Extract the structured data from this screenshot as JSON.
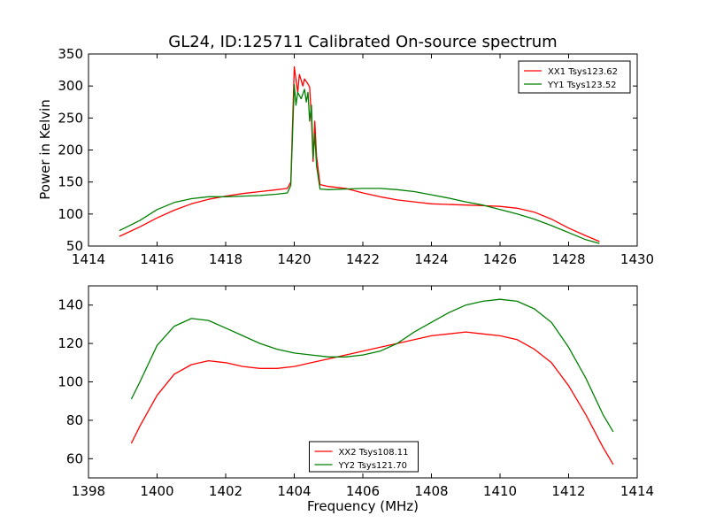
{
  "chart_data": {
    "title": "GL24, ID:125711 Calibrated On-source spectrum",
    "xlabel": "Frequency (MHz)",
    "charts": [
      {
        "type": "line",
        "ylabel": "Power in Kelvin",
        "xlim": [
          1414,
          1430
        ],
        "ylim": [
          50,
          350
        ],
        "xticks": [
          "1414",
          "1416",
          "1418",
          "1420",
          "1422",
          "1424",
          "1426",
          "1428",
          "1430"
        ],
        "yticks": [
          "50",
          "100",
          "150",
          "200",
          "250",
          "300",
          "350"
        ],
        "legend_position": "upper right",
        "series": [
          {
            "name": "XX1 Tsys123.62",
            "color": "#ff0000",
            "points": [
              [
                1414.9,
                65
              ],
              [
                1415.5,
                80
              ],
              [
                1416,
                94
              ],
              [
                1416.5,
                106
              ],
              [
                1417,
                116
              ],
              [
                1417.5,
                123
              ],
              [
                1418,
                128
              ],
              [
                1418.5,
                132
              ],
              [
                1419,
                135
              ],
              [
                1419.5,
                138
              ],
              [
                1419.8,
                140
              ],
              [
                1419.9,
                150
              ],
              [
                1420.0,
                330
              ],
              [
                1420.1,
                290
              ],
              [
                1420.15,
                318
              ],
              [
                1420.25,
                300
              ],
              [
                1420.3,
                311
              ],
              [
                1420.4,
                303
              ],
              [
                1420.45,
                298
              ],
              [
                1420.5,
                250
              ],
              [
                1420.55,
                182
              ],
              [
                1420.6,
                245
              ],
              [
                1420.65,
                190
              ],
              [
                1420.75,
                146
              ],
              [
                1421,
                143
              ],
              [
                1421.5,
                140
              ],
              [
                1422,
                133
              ],
              [
                1422.5,
                127
              ],
              [
                1423,
                122
              ],
              [
                1423.5,
                119
              ],
              [
                1424,
                116
              ],
              [
                1424.5,
                115
              ],
              [
                1425,
                114
              ],
              [
                1425.5,
                113
              ],
              [
                1426,
                112
              ],
              [
                1426.5,
                109
              ],
              [
                1427,
                103
              ],
              [
                1427.5,
                92
              ],
              [
                1428,
                78
              ],
              [
                1428.5,
                66
              ],
              [
                1428.9,
                57
              ]
            ]
          },
          {
            "name": "YY1 Tsys123.52",
            "color": "#008000",
            "points": [
              [
                1414.9,
                74
              ],
              [
                1415.5,
                90
              ],
              [
                1416,
                107
              ],
              [
                1416.5,
                118
              ],
              [
                1417,
                124
              ],
              [
                1417.5,
                127
              ],
              [
                1418,
                127
              ],
              [
                1418.5,
                128
              ],
              [
                1419,
                129
              ],
              [
                1419.5,
                131
              ],
              [
                1419.8,
                133
              ],
              [
                1419.9,
                145
              ],
              [
                1420.0,
                302
              ],
              [
                1420.05,
                270
              ],
              [
                1420.1,
                290
              ],
              [
                1420.2,
                280
              ],
              [
                1420.3,
                295
              ],
              [
                1420.35,
                275
              ],
              [
                1420.4,
                290
              ],
              [
                1420.45,
                245
              ],
              [
                1420.5,
                270
              ],
              [
                1420.55,
                188
              ],
              [
                1420.6,
                225
              ],
              [
                1420.65,
                175
              ],
              [
                1420.75,
                139
              ],
              [
                1421,
                138
              ],
              [
                1421.5,
                139
              ],
              [
                1422,
                140
              ],
              [
                1422.5,
                140
              ],
              [
                1423,
                138
              ],
              [
                1423.5,
                135
              ],
              [
                1424,
                130
              ],
              [
                1424.5,
                125
              ],
              [
                1425,
                119
              ],
              [
                1425.5,
                114
              ],
              [
                1426,
                107
              ],
              [
                1426.5,
                100
              ],
              [
                1427,
                92
              ],
              [
                1427.5,
                82
              ],
              [
                1428,
                71
              ],
              [
                1428.5,
                60
              ],
              [
                1428.9,
                54
              ]
            ]
          }
        ]
      },
      {
        "type": "line",
        "ylabel": "",
        "xlim": [
          1398,
          1414
        ],
        "ylim": [
          50,
          150
        ],
        "xticks": [
          "1398",
          "1400",
          "1402",
          "1404",
          "1406",
          "1408",
          "1410",
          "1412",
          "1414"
        ],
        "yticks": [
          "60",
          "80",
          "100",
          "120",
          "140"
        ],
        "legend_position": "lower center",
        "series": [
          {
            "name": "XX2 Tsys108.11",
            "color": "#ff0000",
            "points": [
              [
                1399.25,
                68
              ],
              [
                1399.5,
                77
              ],
              [
                1400,
                93
              ],
              [
                1400.5,
                104
              ],
              [
                1401,
                109
              ],
              [
                1401.5,
                111
              ],
              [
                1402,
                110
              ],
              [
                1402.5,
                108
              ],
              [
                1403,
                107
              ],
              [
                1403.5,
                107
              ],
              [
                1404,
                108
              ],
              [
                1404.5,
                110
              ],
              [
                1405,
                112
              ],
              [
                1405.5,
                114
              ],
              [
                1406,
                116
              ],
              [
                1406.5,
                118
              ],
              [
                1407,
                120
              ],
              [
                1407.5,
                122
              ],
              [
                1408,
                124
              ],
              [
                1408.5,
                125
              ],
              [
                1409,
                126
              ],
              [
                1409.5,
                125
              ],
              [
                1410,
                124
              ],
              [
                1410.5,
                122
              ],
              [
                1411,
                117
              ],
              [
                1411.5,
                110
              ],
              [
                1412,
                98
              ],
              [
                1412.5,
                83
              ],
              [
                1413,
                66
              ],
              [
                1413.3,
                57
              ]
            ]
          },
          {
            "name": "YY2 Tsys121.70",
            "color": "#008000",
            "points": [
              [
                1399.25,
                91
              ],
              [
                1399.5,
                100
              ],
              [
                1400,
                119
              ],
              [
                1400.5,
                129
              ],
              [
                1401,
                133
              ],
              [
                1401.5,
                132
              ],
              [
                1402,
                128
              ],
              [
                1402.5,
                124
              ],
              [
                1403,
                120
              ],
              [
                1403.5,
                117
              ],
              [
                1404,
                115
              ],
              [
                1404.5,
                114
              ],
              [
                1405,
                113
              ],
              [
                1405.5,
                113
              ],
              [
                1406,
                114
              ],
              [
                1406.5,
                116
              ],
              [
                1407,
                120
              ],
              [
                1407.5,
                126
              ],
              [
                1408,
                131
              ],
              [
                1408.5,
                136
              ],
              [
                1409,
                140
              ],
              [
                1409.5,
                142
              ],
              [
                1410,
                143
              ],
              [
                1410.5,
                142
              ],
              [
                1411,
                138
              ],
              [
                1411.5,
                131
              ],
              [
                1412,
                118
              ],
              [
                1412.5,
                102
              ],
              [
                1413,
                83
              ],
              [
                1413.3,
                74
              ]
            ]
          }
        ]
      }
    ]
  }
}
